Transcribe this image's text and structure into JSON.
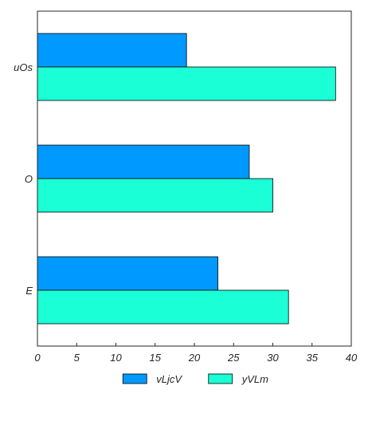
{
  "chart_data": {
    "type": "bar",
    "orientation": "horizontal",
    "categories": [
      "uOs",
      "O",
      "E"
    ],
    "series": [
      {
        "name": "vLjcV",
        "values": [
          19,
          27,
          23
        ],
        "color": "#0099ff"
      },
      {
        "name": "yVLm",
        "values": [
          38,
          30,
          32
        ],
        "color": "#1affd5"
      }
    ],
    "xlim": [
      0,
      40
    ],
    "xticks": [
      0,
      5,
      10,
      15,
      20,
      25,
      30,
      35,
      40
    ],
    "title": "",
    "xlabel": "",
    "ylabel": "",
    "grid": false,
    "legend": "bottom-center"
  }
}
